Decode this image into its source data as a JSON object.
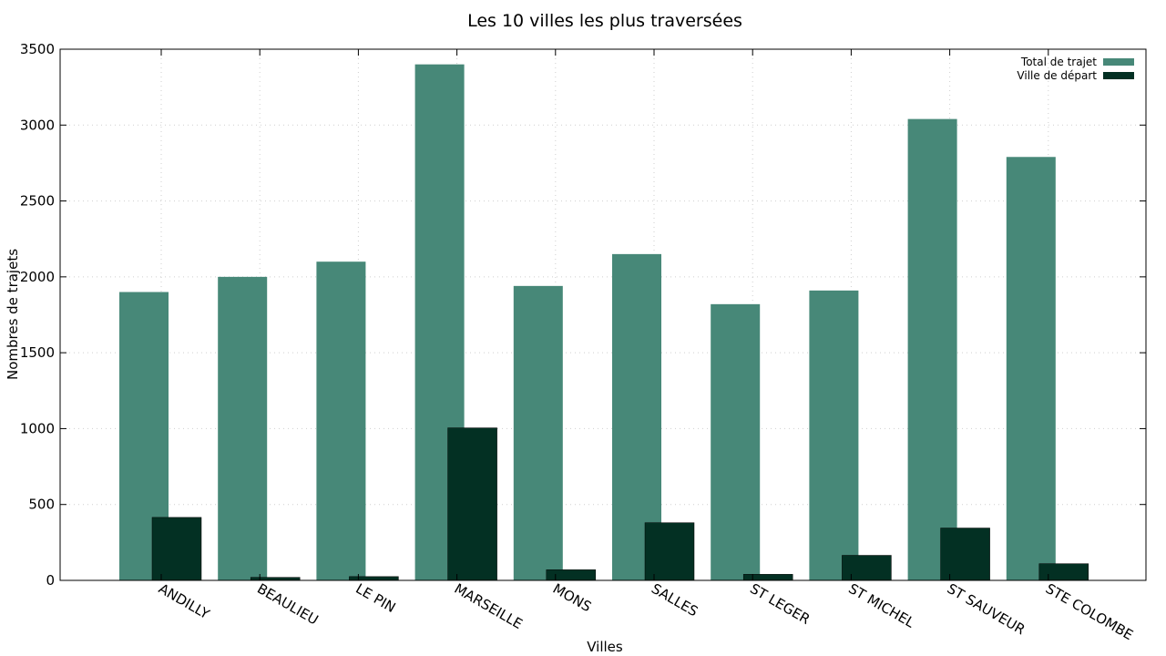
{
  "chart_data": {
    "type": "bar",
    "title": "Les 10 villes les plus traversées",
    "xlabel": "Villes",
    "ylabel": "Nombres de trajets",
    "ylim": [
      0,
      3500
    ],
    "yticks": [
      0,
      500,
      1000,
      1500,
      2000,
      2500,
      3000,
      3500
    ],
    "grid": true,
    "legend_position": "top-right",
    "categories": [
      "ANDILLY",
      "BEAULIEU",
      "LE PIN",
      "MARSEILLE",
      "MONS",
      "SALLES",
      "ST LEGER",
      "ST MICHEL",
      "ST SAUVEUR",
      "STE COLOMBE"
    ],
    "series": [
      {
        "name": "Total de trajet",
        "color": "#478878",
        "values": [
          1900,
          2000,
          2100,
          3400,
          1940,
          2150,
          1820,
          1910,
          3040,
          2790
        ]
      },
      {
        "name": "Ville de départ",
        "color": "#033023",
        "values": [
          415,
          20,
          25,
          1005,
          70,
          380,
          40,
          165,
          345,
          110
        ]
      }
    ]
  }
}
